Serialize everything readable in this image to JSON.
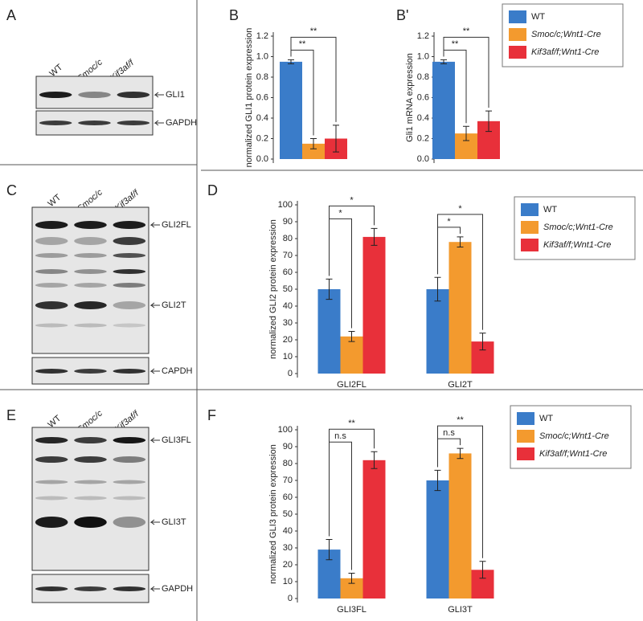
{
  "chart_data": [
    {
      "type": "bar",
      "panel": "B",
      "ylabel": "normalized GLI1 protein expression",
      "categories": [
        null
      ],
      "series": [
        {
          "name": "WT",
          "color": "#3a7cc9",
          "values": [
            0.95
          ],
          "errors": [
            0.02
          ]
        },
        {
          "name": "Smoc/c;Wnt1-Cre",
          "color": "#f39a2e",
          "values": [
            0.15
          ],
          "errors": [
            0.05
          ]
        },
        {
          "name": "Kif3af/f;Wnt1-Cre",
          "color": "#e8303a",
          "values": [
            0.2
          ],
          "errors": [
            0.13
          ]
        }
      ],
      "ylim": [
        0,
        1.2
      ],
      "yticks": [
        {
          "value": 0,
          "label": "0.0"
        },
        0.2,
        0.4,
        0.6,
        0.8,
        {
          "value": 1,
          "label": "1.0"
        },
        1.2
      ],
      "significance": [
        [
          "**",
          "**"
        ]
      ],
      "legend": false
    },
    {
      "type": "bar",
      "panel": "B'",
      "ylabel": "Gli1 mRNA expression",
      "categories": [
        null
      ],
      "series": [
        {
          "name": "WT",
          "color": "#3a7cc9",
          "values": [
            0.95
          ],
          "errors": [
            0.02
          ]
        },
        {
          "name": "Smoc/c;Wnt1-Cre",
          "color": "#f39a2e",
          "values": [
            0.25
          ],
          "errors": [
            0.07
          ]
        },
        {
          "name": "Kif3af/f;Wnt1-Cre",
          "color": "#e8303a",
          "values": [
            0.37
          ],
          "errors": [
            0.1
          ]
        }
      ],
      "ylim": [
        0,
        1.2
      ],
      "yticks": [
        {
          "value": 0,
          "label": "0.0"
        },
        0.2,
        0.4,
        0.6,
        0.8,
        {
          "value": 1,
          "label": "1.0"
        },
        1.2
      ],
      "significance": [
        [
          "**",
          "**"
        ]
      ],
      "legend": true
    },
    {
      "type": "bar",
      "panel": "D",
      "ylabel": "normalized GLI2 protein expression",
      "categories": [
        "GLI2FL",
        "GLI2T"
      ],
      "series": [
        {
          "name": "WT",
          "color": "#3a7cc9",
          "values": [
            50,
            50
          ],
          "errors": [
            6,
            7
          ]
        },
        {
          "name": "Smoc/c;Wnt1-Cre",
          "color": "#f39a2e",
          "values": [
            22,
            78
          ],
          "errors": [
            3,
            3
          ]
        },
        {
          "name": "Kif3af/f;Wnt1-Cre",
          "color": "#e8303a",
          "values": [
            81,
            19
          ],
          "errors": [
            5,
            5
          ]
        }
      ],
      "ylim": [
        0,
        100
      ],
      "yticks": [
        0,
        10,
        20,
        30,
        40,
        50,
        60,
        70,
        80,
        90,
        100
      ],
      "significance": [
        [
          "*",
          "*"
        ],
        [
          "*",
          "*"
        ]
      ],
      "legend": true
    },
    {
      "type": "bar",
      "panel": "F",
      "ylabel": "normalized GLI3 protein expression",
      "categories": [
        "GLI3FL",
        "GLI3T"
      ],
      "series": [
        {
          "name": "WT",
          "color": "#3a7cc9",
          "values": [
            29,
            70
          ],
          "errors": [
            6,
            6
          ]
        },
        {
          "name": "Smoc/c;Wnt1-Cre",
          "color": "#f39a2e",
          "values": [
            12,
            86
          ],
          "errors": [
            3,
            3
          ]
        },
        {
          "name": "Kif3af/f;Wnt1-Cre",
          "color": "#e8303a",
          "values": [
            82,
            17
          ],
          "errors": [
            5,
            5
          ]
        }
      ],
      "ylim": [
        0,
        100
      ],
      "yticks": [
        0,
        10,
        20,
        30,
        40,
        50,
        60,
        70,
        80,
        90,
        100
      ],
      "significance": [
        [
          "n.s",
          "**"
        ],
        [
          "n.s",
          "**"
        ]
      ],
      "legend": true
    }
  ],
  "blots": [
    {
      "panel": "A",
      "lanes": [
        "WT",
        "Smoc/c",
        "Kif3af/f"
      ],
      "bands": [
        "GLI1",
        "GAPDH"
      ]
    },
    {
      "panel": "C",
      "lanes": [
        "WT",
        "Smoc/c",
        "Kif3af/f"
      ],
      "bands": [
        "GLI2FL",
        "GLI2T",
        "CAPDH"
      ]
    },
    {
      "panel": "E",
      "lanes": [
        "WT",
        "Smoc/c",
        "Kif3af/f"
      ],
      "bands": [
        "GLI3FL",
        "GLI3T",
        "GAPDH"
      ]
    }
  ]
}
